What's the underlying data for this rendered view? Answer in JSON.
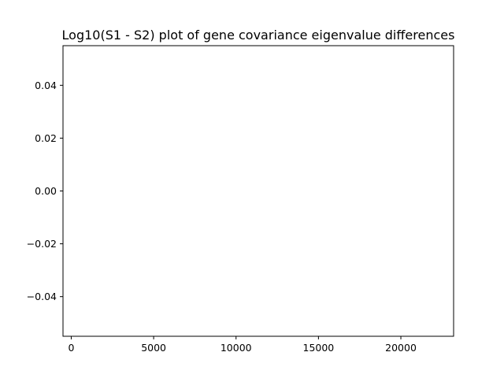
{
  "chart_data": {
    "type": "line",
    "title": "Log10(S1 - S2) plot of gene covariance eigenvalue differences",
    "xlabel": "",
    "ylabel": "",
    "x": [],
    "series": [],
    "xlim": [
      -500,
      23200
    ],
    "ylim": [
      -0.055,
      0.055
    ],
    "xticks": [
      0,
      5000,
      10000,
      15000,
      20000
    ],
    "xtick_labels": [
      "0",
      "5000",
      "10000",
      "15000",
      "20000"
    ],
    "yticks": [
      0.04,
      0.02,
      0.0,
      -0.02,
      -0.04
    ],
    "ytick_labels": [
      "0.04",
      "0.02",
      "0.00",
      "−0.02",
      "−0.04"
    ],
    "grid": false,
    "legend": "none",
    "colors": {
      "axes": "#000000",
      "background": "#ffffff"
    }
  }
}
